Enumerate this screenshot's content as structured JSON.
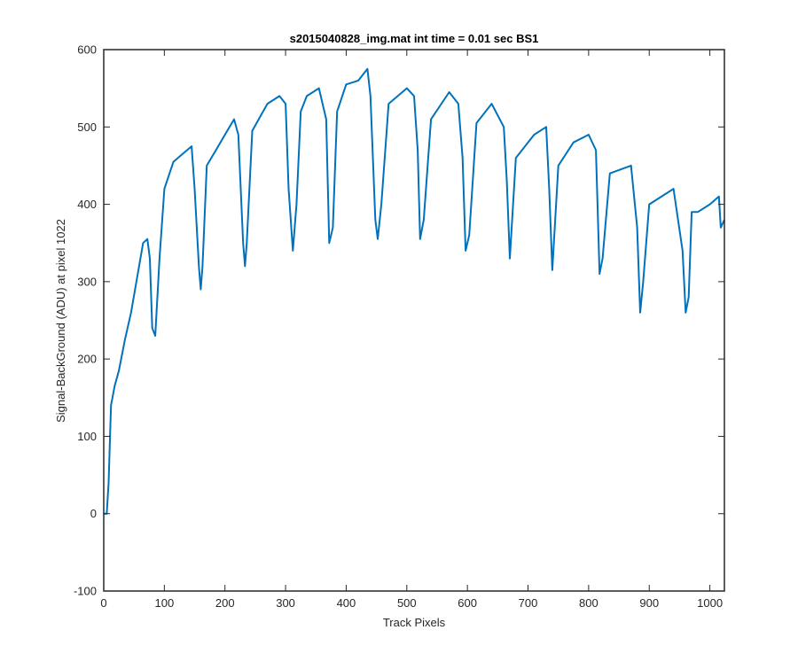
{
  "chart_data": {
    "type": "line",
    "title": "s2015040828_img.mat int time = 0.01 sec   BS1",
    "xlabel": "Track Pixels",
    "ylabel": "Signal-BackGround (ADU) at pixel 1022",
    "xlim": [
      0,
      1024
    ],
    "ylim": [
      -100,
      600
    ],
    "xticks": [
      0,
      100,
      200,
      300,
      400,
      500,
      600,
      700,
      800,
      900,
      1000
    ],
    "yticks": [
      -100,
      0,
      100,
      200,
      300,
      400,
      500,
      600
    ],
    "xtick_labels": [
      "0",
      "100",
      "200",
      "300",
      "400",
      "500",
      "600",
      "700",
      "800",
      "900",
      "1000"
    ],
    "ytick_labels": [
      "-100",
      "0",
      "100",
      "200",
      "300",
      "400",
      "500",
      "600"
    ],
    "grid": false,
    "line_color": "#0072BD",
    "series": [
      {
        "x": [
          0,
          5,
          8,
          12,
          18,
          25,
          35,
          45,
          55,
          65,
          72,
          76,
          80,
          85,
          92,
          100,
          115,
          130,
          145,
          150,
          157,
          160,
          163,
          170,
          185,
          200,
          215,
          222,
          230,
          233,
          236,
          245,
          270,
          290,
          300,
          305,
          312,
          318,
          325,
          335,
          355,
          367,
          372,
          378,
          385,
          400,
          420,
          435,
          440,
          448,
          452,
          458,
          470,
          500,
          512,
          518,
          522,
          528,
          540,
          570,
          585,
          592,
          597,
          603,
          615,
          640,
          660,
          665,
          670,
          680,
          710,
          730,
          735,
          740,
          750,
          775,
          800,
          812,
          818,
          823,
          835,
          870,
          880,
          885,
          890,
          900,
          940,
          955,
          960,
          965,
          970,
          980,
          1000,
          1015,
          1018,
          1024
        ],
        "y": [
          0,
          0,
          40,
          140,
          165,
          185,
          225,
          260,
          305,
          350,
          355,
          330,
          240,
          230,
          330,
          420,
          455,
          465,
          475,
          420,
          320,
          290,
          320,
          450,
          470,
          490,
          510,
          490,
          350,
          320,
          350,
          495,
          530,
          540,
          530,
          420,
          340,
          400,
          520,
          540,
          550,
          510,
          350,
          370,
          520,
          555,
          560,
          575,
          540,
          380,
          355,
          400,
          530,
          550,
          540,
          470,
          355,
          380,
          510,
          545,
          530,
          460,
          340,
          360,
          505,
          530,
          500,
          430,
          330,
          460,
          490,
          500,
          420,
          315,
          450,
          480,
          490,
          470,
          310,
          330,
          440,
          450,
          370,
          260,
          300,
          400,
          420,
          340,
          260,
          280,
          390,
          390,
          400,
          410,
          370,
          380
        ]
      }
    ]
  }
}
